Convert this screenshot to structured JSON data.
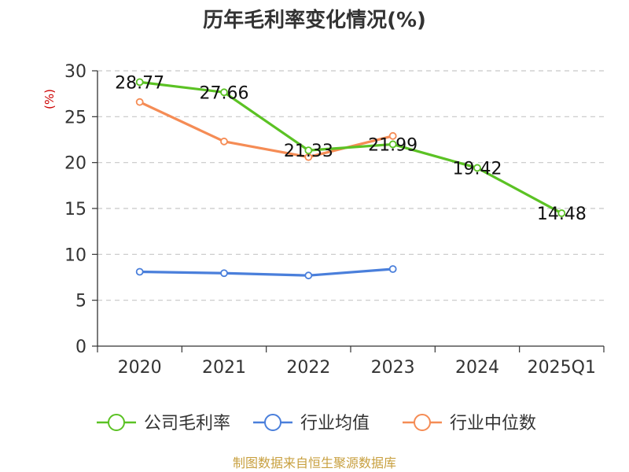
{
  "chart_data": {
    "type": "line",
    "title": "历年毛利率变化情况(%)",
    "ylabel": "(%)",
    "categories": [
      "2020",
      "2021",
      "2022",
      "2023",
      "2024",
      "2025Q1"
    ],
    "ylim": [
      0,
      30
    ],
    "yticks": [
      0,
      5,
      10,
      15,
      20,
      25,
      30
    ],
    "grid": true,
    "legend_position": "bottom",
    "series": [
      {
        "name": "公司毛利率",
        "color": "#5bc224",
        "values": [
          28.77,
          27.66,
          21.33,
          21.99,
          19.42,
          14.48
        ],
        "labels": [
          "28.77",
          "27.66",
          "21.33",
          "21.99",
          "19.42",
          "14.48"
        ]
      },
      {
        "name": "行业均值",
        "color": "#4a7fdb",
        "values": [
          8.1,
          7.95,
          7.7,
          8.4,
          null,
          null
        ]
      },
      {
        "name": "行业中位数",
        "color": "#f58c55",
        "values": [
          26.6,
          22.3,
          20.6,
          22.9,
          null,
          null
        ]
      }
    ]
  },
  "source": "制图数据来自恒生聚源数据库"
}
